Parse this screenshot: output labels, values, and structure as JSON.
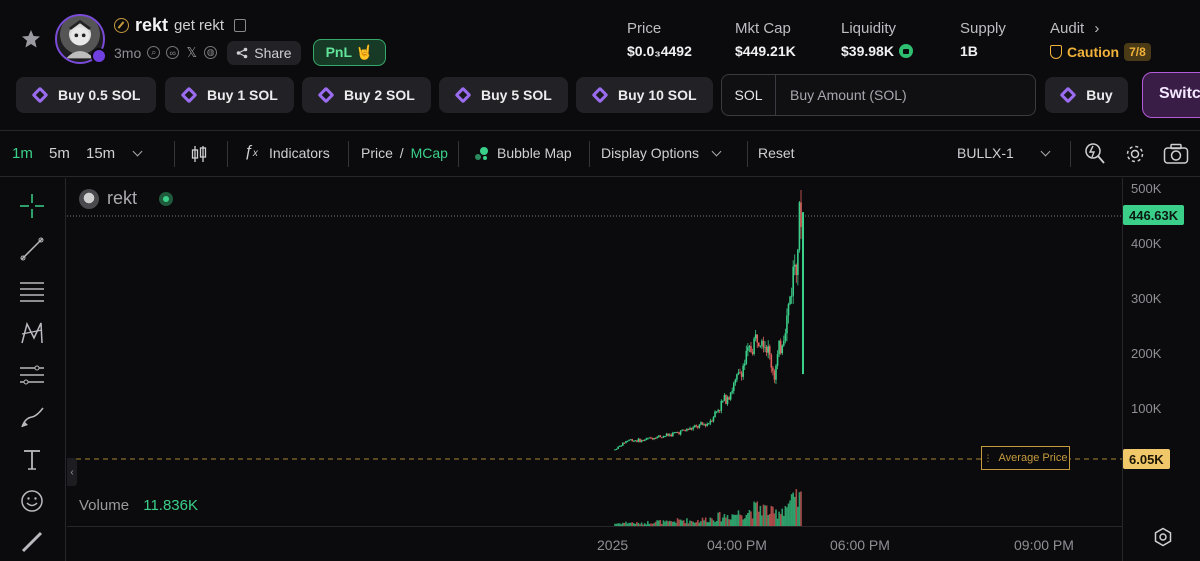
{
  "token": {
    "name": "rekt",
    "subtitle": "get rekt",
    "age": "3mo",
    "share_label": "Share",
    "pnl_label": "PnL 🤘"
  },
  "stats": {
    "price_label": "Price",
    "price_value": "$0.0₃4492",
    "mcap_label": "Mkt Cap",
    "mcap_value": "$449.21K",
    "liquidity_label": "Liquidity",
    "liquidity_value": "$39.98K",
    "supply_label": "Supply",
    "supply_value": "1B",
    "audit_label": "Audit",
    "audit_status": "Caution",
    "audit_score": "7/8"
  },
  "quick_buy": {
    "buttons": [
      "Buy 0.5 SOL",
      "Buy 1 SOL",
      "Buy 2 SOL",
      "Buy 5 SOL",
      "Buy 10 SOL"
    ],
    "amount_unit": "SOL",
    "amount_placeholder": "Buy Amount (SOL)",
    "buy_label": "Buy",
    "switch_label": "Switch"
  },
  "toolbar": {
    "timeframes": [
      "1m",
      "5m",
      "15m"
    ],
    "active_timeframe": "1m",
    "indicators_label": "Indicators",
    "price_label": "Price",
    "separator": "/",
    "mcap_label": "MCap",
    "bubble_map_label": "Bubble Map",
    "display_options_label": "Display Options",
    "reset_label": "Reset",
    "layout_label": "BULLX-1"
  },
  "chart": {
    "legend_name": "rekt",
    "volume_label": "Volume",
    "volume_value": "11.836K",
    "average_price_label": "Average Price",
    "current_tag": "446.63K",
    "avg_tag": "6.05K",
    "price_ticks": [
      "500K",
      "400K",
      "300K",
      "200K",
      "100K"
    ],
    "time_ticks": [
      "2025",
      "04:00 PM",
      "06:00 PM",
      "09:00 PM"
    ],
    "colors": {
      "up": "#3bd08a",
      "down": "#e0605d",
      "avg_line": "#c59a3d",
      "accent": "#3bd08a"
    }
  },
  "chart_data": {
    "type": "candlestick",
    "y_unit": "market cap (USD)",
    "ylim": [
      0,
      500000
    ],
    "x_ticks": [
      "2025",
      "04:00 PM",
      "06:00 PM",
      "09:00 PM"
    ],
    "current_value": 446630,
    "average_price": 6050,
    "close_trend": [
      12000,
      30000,
      28000,
      35000,
      38000,
      45000,
      52000,
      60000,
      95000,
      130000,
      185000,
      235000,
      150000,
      260000,
      446630
    ],
    "volume_trend": [
      2,
      3,
      2,
      4,
      3,
      5,
      4,
      6,
      8,
      10,
      12,
      16,
      10,
      18,
      22
    ]
  },
  "tools": [
    "crosshair-icon",
    "trend-line-icon",
    "horizontal-lines-icon",
    "pattern-icon",
    "fib-icon",
    "brush-icon",
    "text-icon",
    "emoji-icon"
  ]
}
